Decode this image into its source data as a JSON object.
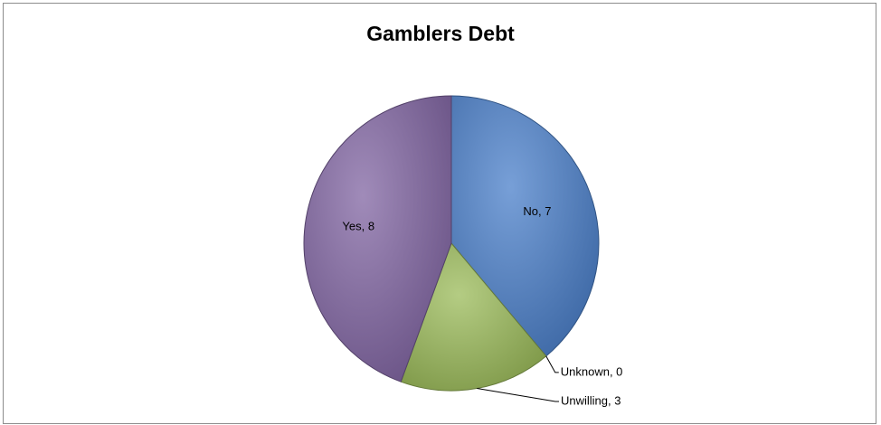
{
  "chart_data": {
    "type": "pie",
    "title": "Gamblers Debt",
    "slices": [
      {
        "label": "No",
        "value": 7,
        "text": "No, 7",
        "color": "#4a7fc9"
      },
      {
        "label": "Unknown",
        "value": 0,
        "text": "Unknown, 0",
        "color": "#c0504d"
      },
      {
        "label": "Unwilling",
        "value": 3,
        "text": "Unwilling,  3",
        "color": "#9bbb59"
      },
      {
        "label": "Yes",
        "value": 8,
        "text": "Yes, 8",
        "color": "#8064a2"
      }
    ],
    "legend": "none",
    "data_labels": "category, value"
  }
}
